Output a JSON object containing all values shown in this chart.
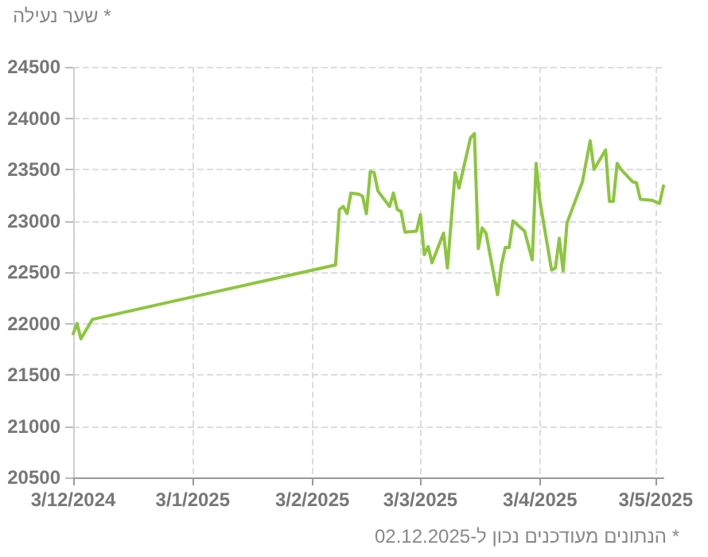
{
  "chart_data": {
    "type": "line",
    "title": "* שער נעילה",
    "annotations": [
      "* הנתונים מעודכנים נכון ל-02.12.2025"
    ],
    "x": [
      "2024-12-03",
      "2024-12-04",
      "2024-12-05",
      "2024-12-08",
      "2025-02-09",
      "2025-02-10",
      "2025-02-11",
      "2025-02-12",
      "2025-02-13",
      "2025-02-15",
      "2025-02-16",
      "2025-02-17",
      "2025-02-18",
      "2025-02-19",
      "2025-02-20",
      "2025-02-23",
      "2025-02-24",
      "2025-02-25",
      "2025-02-26",
      "2025-02-27",
      "2025-03-02",
      "2025-03-03",
      "2025-03-04",
      "2025-03-05",
      "2025-03-06",
      "2025-03-09",
      "2025-03-10",
      "2025-03-12",
      "2025-03-13",
      "2025-03-16",
      "2025-03-17",
      "2025-03-18",
      "2025-03-19",
      "2025-03-20",
      "2025-03-23",
      "2025-03-24",
      "2025-03-25",
      "2025-03-26",
      "2025-03-27",
      "2025-03-30",
      "2025-04-01",
      "2025-04-02",
      "2025-04-03",
      "2025-04-06",
      "2025-04-07",
      "2025-04-08",
      "2025-04-09",
      "2025-04-10",
      "2025-04-14",
      "2025-04-16",
      "2025-04-17",
      "2025-04-20",
      "2025-04-21",
      "2025-04-22",
      "2025-04-23",
      "2025-04-24",
      "2025-04-27",
      "2025-04-28",
      "2025-04-29",
      "2025-05-02",
      "2025-05-04",
      "2025-05-05"
    ],
    "series": [
      {
        "color": "#8cc63f",
        "values": [
          21900,
          22000,
          21850,
          22040,
          22570,
          23110,
          23140,
          23070,
          23270,
          23260,
          23240,
          23070,
          23480,
          23470,
          23290,
          23140,
          23270,
          23110,
          23090,
          22890,
          22900,
          23060,
          22670,
          22750,
          22590,
          22880,
          22540,
          23470,
          23320,
          23810,
          23850,
          22730,
          22930,
          22880,
          22280,
          22570,
          22740,
          22740,
          23000,
          22900,
          22620,
          23560,
          23190,
          22520,
          22540,
          22830,
          22510,
          22980,
          23380,
          23780,
          23500,
          23690,
          23190,
          23190,
          23560,
          23500,
          23380,
          23370,
          23210,
          23200,
          23170,
          23340
        ]
      }
    ],
    "xlim": [
      "2024-12-03",
      "2025-05-05"
    ],
    "xticks": [
      {
        "value": "2024-12-03",
        "label": "3/12/2024"
      },
      {
        "value": "2025-01-03",
        "label": "3/1/2025"
      },
      {
        "value": "2025-02-03",
        "label": "3/2/2025"
      },
      {
        "value": "2025-03-03",
        "label": "3/3/2025"
      },
      {
        "value": "2025-04-03",
        "label": "3/4/2025"
      },
      {
        "value": "2025-05-03",
        "label": "3/5/2025"
      }
    ],
    "ylim": [
      20500,
      24500
    ],
    "yticks": [
      20500,
      21000,
      21500,
      22000,
      22500,
      23000,
      23500,
      24000,
      24500
    ],
    "grid": true,
    "marker": "none",
    "line_style": "solid"
  }
}
